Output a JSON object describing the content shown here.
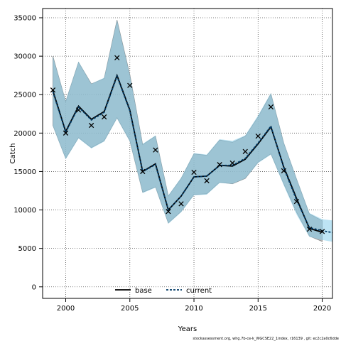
{
  "chart_data": {
    "type": "line",
    "xlabel": "Years",
    "ylabel": "Catch",
    "xlim": [
      1998.2,
      2020.8
    ],
    "ylim": [
      -1500,
      36200
    ],
    "xticks": [
      2000,
      2005,
      2010,
      2015,
      2020
    ],
    "yticks": [
      0,
      5000,
      10000,
      15000,
      20000,
      25000,
      30000,
      35000
    ],
    "grid": true,
    "legend_position": "bottom-center",
    "caption": "stockassessment.org, whg.7b-ce-k_WGCSE22_1index, r16139 , git: ec2c2a0c6dde",
    "colors": {
      "base_line": "#000000",
      "base_band": "#a0a0a0",
      "current_line": "#003a66",
      "current_band": "#87ceeb",
      "observed_marker": "#000000"
    },
    "series": [
      {
        "name": "base",
        "x": [
          1999,
          2000,
          2001,
          2002,
          2003,
          2004,
          2005,
          2006,
          2007,
          2008,
          2009,
          2010,
          2011,
          2012,
          2013,
          2014,
          2015,
          2016,
          2017,
          2018,
          2019,
          2020
        ],
        "y": [
          25500,
          20200,
          23500,
          21800,
          22800,
          27500,
          23000,
          15000,
          16000,
          10000,
          11800,
          14300,
          14400,
          15800,
          15700,
          16600,
          18600,
          20800,
          15600,
          11500,
          7600,
          7100
        ],
        "lower": [
          21000,
          16700,
          19400,
          18100,
          19000,
          22000,
          19000,
          12300,
          13000,
          8300,
          9800,
          12000,
          12100,
          13600,
          13400,
          14100,
          16200,
          17300,
          13400,
          9700,
          6600,
          5900
        ],
        "upper": [
          30000,
          24100,
          29200,
          26400,
          27100,
          34700,
          27600,
          18500,
          19600,
          11800,
          14100,
          17300,
          17100,
          19100,
          18800,
          19600,
          22100,
          25100,
          18700,
          14000,
          9500,
          8600
        ]
      },
      {
        "name": "current",
        "x": [
          1999,
          2000,
          2001,
          2002,
          2003,
          2004,
          2005,
          2006,
          2007,
          2008,
          2009,
          2010,
          2011,
          2012,
          2013,
          2014,
          2015,
          2016,
          2017,
          2018,
          2019,
          2020,
          2021
        ],
        "y": [
          25400,
          20100,
          23400,
          21700,
          22700,
          27400,
          22900,
          15000,
          15900,
          10000,
          11800,
          14300,
          14400,
          15800,
          15800,
          16700,
          18700,
          20900,
          15500,
          11300,
          7700,
          7300,
          7000
        ],
        "lower": [
          20900,
          16600,
          19300,
          18000,
          18900,
          21900,
          18900,
          12200,
          12900,
          8200,
          9700,
          11900,
          12000,
          13500,
          13400,
          14100,
          16100,
          17200,
          13200,
          9400,
          6500,
          6100,
          5800
        ],
        "upper": [
          30000,
          24200,
          29300,
          26400,
          27200,
          34700,
          27600,
          18600,
          19700,
          11900,
          14200,
          17400,
          17200,
          19200,
          19000,
          19700,
          22300,
          25200,
          18800,
          14100,
          9600,
          8800,
          8600
        ]
      }
    ],
    "observed": {
      "x": [
        1999,
        2000,
        2001,
        2002,
        2003,
        2004,
        2005,
        2006,
        2007,
        2008,
        2009,
        2010,
        2011,
        2012,
        2013,
        2014,
        2015,
        2016,
        2017,
        2018,
        2019,
        2020
      ],
      "y": [
        25600,
        20000,
        23000,
        21000,
        22100,
        29800,
        26200,
        15000,
        17800,
        9800,
        10800,
        14900,
        13800,
        15900,
        16100,
        17600,
        19600,
        23400,
        15100,
        11100,
        7500,
        7200
      ]
    }
  }
}
